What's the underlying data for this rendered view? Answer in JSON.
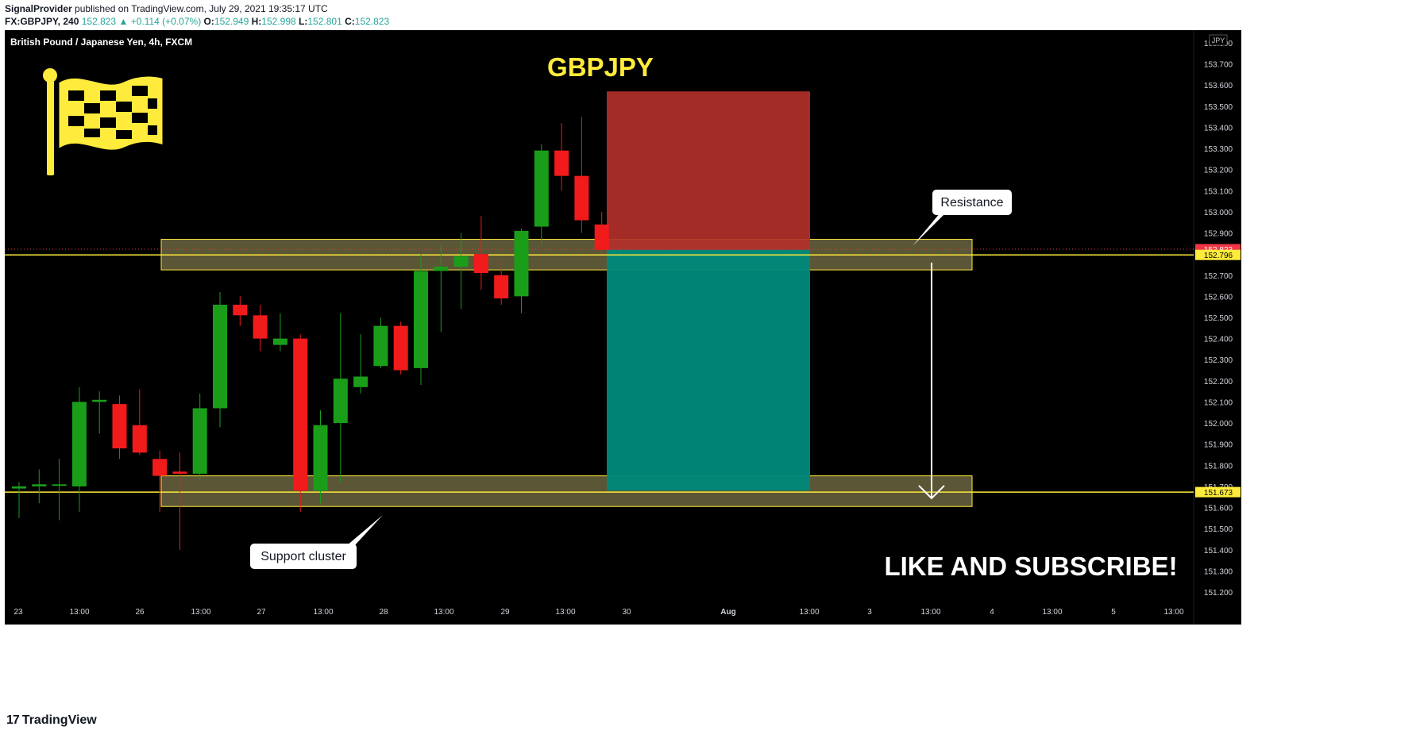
{
  "header": {
    "publisher": "SignalProvider",
    "published_text": "published on TradingView.com, July 29, 2021 19:35:17 UTC",
    "symbol": "FX:GBPJPY, 240",
    "last": "152.823",
    "change": "+0.114 (+0.07%)",
    "ohlc": {
      "o": "152.949",
      "h": "152.998",
      "l": "152.801",
      "c": "152.823"
    }
  },
  "chart_data": {
    "type": "candlestick",
    "title": "GBPJPY",
    "instrument_label": "British Pound / Japanese Yen, 4h, FXCM",
    "currency": "JPY",
    "ylim": [
      151.14,
      153.86
    ],
    "y_ticks": [
      "153.800",
      "153.700",
      "153.600",
      "153.500",
      "153.400",
      "153.300",
      "153.200",
      "153.100",
      "153.000",
      "152.900",
      "152.700",
      "152.600",
      "152.500",
      "152.400",
      "152.300",
      "152.200",
      "152.100",
      "152.000",
      "151.900",
      "151.800",
      "151.700",
      "151.600",
      "151.500",
      "151.400",
      "151.300",
      "151.200"
    ],
    "x_ticks": [
      "23",
      "13:00",
      "26",
      "13:00",
      "27",
      "13:00",
      "28",
      "13:00",
      "29",
      "13:00",
      "30",
      "Aug",
      "13:00",
      "3",
      "13:00",
      "4",
      "13:00",
      "5",
      "13:00"
    ],
    "price_labels": {
      "last": "152.823",
      "resistance": "152.796",
      "support": "151.673"
    },
    "candles": [
      {
        "o": 151.69,
        "h": 151.72,
        "l": 151.55,
        "c": 151.7
      },
      {
        "o": 151.7,
        "h": 151.78,
        "l": 151.62,
        "c": 151.71
      },
      {
        "o": 151.71,
        "h": 151.83,
        "l": 151.54,
        "c": 151.71
      },
      {
        "o": 151.7,
        "h": 152.17,
        "l": 151.58,
        "c": 152.1
      },
      {
        "o": 152.1,
        "h": 152.15,
        "l": 151.95,
        "c": 152.11
      },
      {
        "o": 152.09,
        "h": 152.13,
        "l": 151.83,
        "c": 151.88
      },
      {
        "o": 151.99,
        "h": 152.16,
        "l": 151.85,
        "c": 151.86
      },
      {
        "o": 151.83,
        "h": 151.87,
        "l": 151.58,
        "c": 151.75
      },
      {
        "o": 151.77,
        "h": 151.86,
        "l": 151.4,
        "c": 151.76
      },
      {
        "o": 151.76,
        "h": 152.14,
        "l": 151.73,
        "c": 152.07
      },
      {
        "o": 152.07,
        "h": 152.62,
        "l": 151.98,
        "c": 152.56
      },
      {
        "o": 152.56,
        "h": 152.6,
        "l": 152.46,
        "c": 152.51
      },
      {
        "o": 152.51,
        "h": 152.56,
        "l": 152.34,
        "c": 152.4
      },
      {
        "o": 152.37,
        "h": 152.52,
        "l": 152.34,
        "c": 152.4
      },
      {
        "o": 152.4,
        "h": 152.42,
        "l": 151.58,
        "c": 151.68
      },
      {
        "o": 151.68,
        "h": 152.06,
        "l": 151.62,
        "c": 151.99
      },
      {
        "o": 152.0,
        "h": 152.52,
        "l": 151.72,
        "c": 152.21
      },
      {
        "o": 152.17,
        "h": 152.42,
        "l": 152.14,
        "c": 152.22
      },
      {
        "o": 152.27,
        "h": 152.5,
        "l": 152.26,
        "c": 152.46
      },
      {
        "o": 152.46,
        "h": 152.48,
        "l": 152.23,
        "c": 152.25
      },
      {
        "o": 152.26,
        "h": 152.8,
        "l": 152.18,
        "c": 152.72
      },
      {
        "o": 152.72,
        "h": 152.84,
        "l": 152.43,
        "c": 152.74
      },
      {
        "o": 152.74,
        "h": 152.9,
        "l": 152.54,
        "c": 152.79
      },
      {
        "o": 152.8,
        "h": 152.98,
        "l": 152.63,
        "c": 152.71
      },
      {
        "o": 152.7,
        "h": 152.77,
        "l": 152.56,
        "c": 152.59
      },
      {
        "o": 152.6,
        "h": 152.92,
        "l": 152.52,
        "c": 152.91
      },
      {
        "o": 152.93,
        "h": 153.32,
        "l": 152.84,
        "c": 153.29
      },
      {
        "o": 153.29,
        "h": 153.42,
        "l": 153.1,
        "c": 153.17
      },
      {
        "o": 153.17,
        "h": 153.45,
        "l": 152.9,
        "c": 152.96
      },
      {
        "o": 152.94,
        "h": 153.0,
        "l": 152.8,
        "c": 152.82
      }
    ],
    "zones": {
      "resistance": [
        152.725,
        152.87
      ],
      "support": [
        151.605,
        151.75
      ]
    },
    "position": {
      "stop_top": 153.57,
      "entry": 152.82,
      "target": 151.68
    },
    "annotations": {
      "resistance_label": "Resistance",
      "support_label": "Support cluster",
      "cta": "LIKE AND SUBSCRIBE!"
    },
    "colors": {
      "up": "#1a9e1a",
      "down": "#f21b1b",
      "background": "#000000",
      "zone": "#6b6540",
      "stop": "#b2302a",
      "target": "#00897b",
      "level": "#ffeb3b",
      "title": "#ffeb3b"
    }
  },
  "footer": {
    "brand": "TradingView"
  }
}
